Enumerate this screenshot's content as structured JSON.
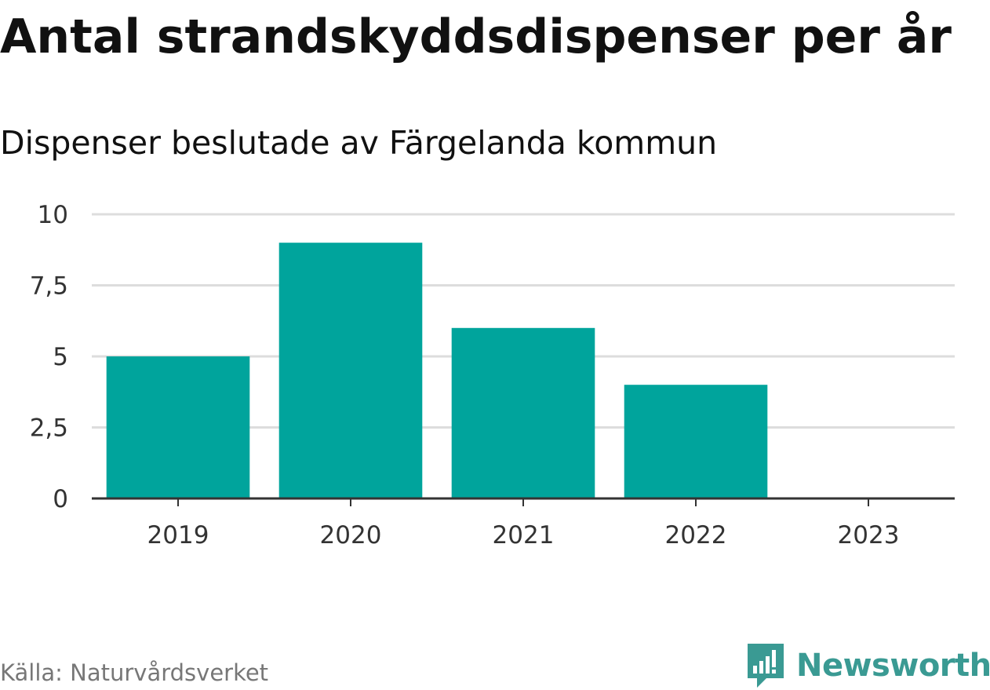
{
  "header": {
    "title": "Antal strandskyddsdispenser per år",
    "subtitle": "Dispenser beslutade av Färgelanda kommun"
  },
  "footer": {
    "source": "Källa: Naturvårdsverket",
    "brand": "Newsworthy"
  },
  "colors": {
    "bar": "#00a49c",
    "grid": "#dddddd",
    "axis": "#333333",
    "brand": "#3a9a93"
  },
  "chart_data": {
    "type": "bar",
    "title": "Antal strandskyddsdispenser per år",
    "subtitle": "Dispenser beslutade av Färgelanda kommun",
    "categories": [
      "2019",
      "2020",
      "2021",
      "2022",
      "2023"
    ],
    "values": [
      5,
      9,
      6,
      4,
      0
    ],
    "xlabel": "",
    "ylabel": "",
    "ylim": [
      0,
      10
    ],
    "yticks": [
      0,
      2.5,
      5,
      7.5,
      10
    ],
    "ytick_labels": [
      "0",
      "2,5",
      "5",
      "7,5",
      "10"
    ],
    "grid": true,
    "legend": "none"
  }
}
